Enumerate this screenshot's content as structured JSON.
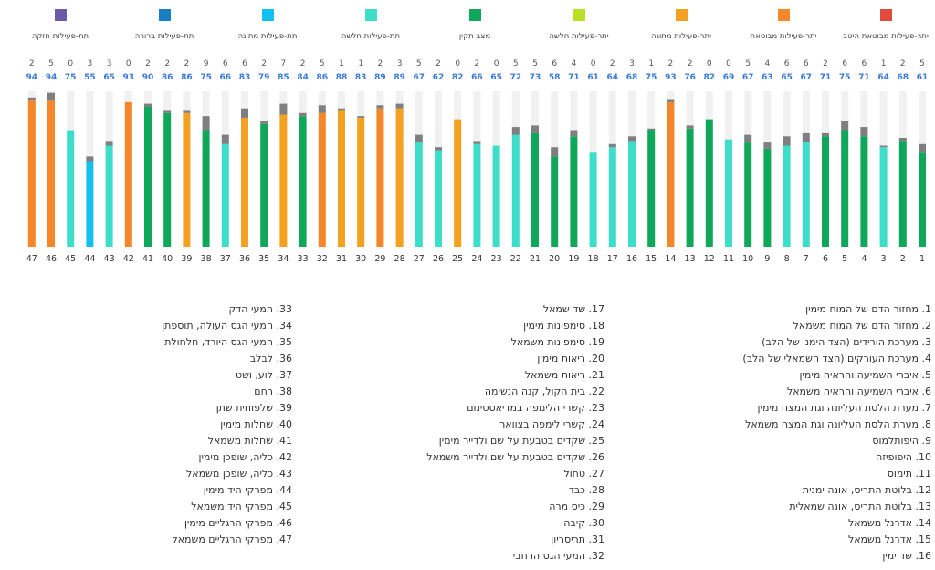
{
  "legend": [
    {
      "label": "יתר-פעילות מבוטאת היטב",
      "color": "#e04b3d",
      "icon": "red-square-icon"
    },
    {
      "label": "יתר-פעילות מבוטאת",
      "color": "#f5862a",
      "icon": "orange-square-icon"
    },
    {
      "label": "יתר-פעילות מתונה",
      "color": "#f4a020",
      "icon": "amber-square-icon"
    },
    {
      "label": "יתר-פעילות חלשה",
      "color": "#b9e022",
      "icon": "lime-square-icon"
    },
    {
      "label": "מצב תקין",
      "color": "#0fa85a",
      "icon": "green-square-icon"
    },
    {
      "label": "תת-פעילות חלשה",
      "color": "#3ddec9",
      "icon": "turquoise-square-icon"
    },
    {
      "label": "תת-פעילות מתונה",
      "color": "#13c0f0",
      "icon": "light-blue-square-icon"
    },
    {
      "label": "תת-פעילות ברורה",
      "color": "#1a7fc0",
      "icon": "blue-square-icon"
    },
    {
      "label": "תת-פעילות חזקה",
      "color": "#6a5aa8",
      "icon": "purple-square-icon"
    }
  ],
  "colors": {
    "grey_cap": "#7f7f7f",
    "track": "#f1f1f1",
    "value_blue": "#3a7bd5",
    "top_grey": "#555555"
  },
  "chart_data": {
    "type": "bar",
    "ylim": [
      0,
      100
    ],
    "categories": [
      "1",
      "2",
      "3",
      "4",
      "5",
      "6",
      "7",
      "8",
      "9",
      "10",
      "11",
      "12",
      "13",
      "14",
      "15",
      "16",
      "17",
      "18",
      "19",
      "20",
      "21",
      "22",
      "23",
      "24",
      "25",
      "26",
      "27",
      "28",
      "29",
      "30",
      "31",
      "32",
      "33",
      "34",
      "35",
      "36",
      "37",
      "38",
      "39",
      "40",
      "41",
      "42",
      "43",
      "44",
      "45",
      "46",
      "47"
    ],
    "values": [
      61,
      68,
      64,
      71,
      75,
      71,
      67,
      65,
      63,
      67,
      69,
      82,
      76,
      93,
      75,
      68,
      64,
      61,
      71,
      58,
      73,
      72,
      65,
      66,
      82,
      62,
      67,
      89,
      89,
      83,
      88,
      86,
      84,
      85,
      79,
      83,
      66,
      75,
      86,
      86,
      90,
      93,
      65,
      55,
      75,
      94,
      94
    ],
    "top_values": [
      5,
      2,
      1,
      6,
      6,
      2,
      6,
      6,
      4,
      5,
      0,
      0,
      2,
      2,
      1,
      3,
      2,
      0,
      4,
      6,
      5,
      5,
      0,
      2,
      0,
      2,
      5,
      3,
      2,
      1,
      1,
      5,
      2,
      7,
      2,
      6,
      6,
      9,
      2,
      2,
      2,
      0,
      3,
      3,
      0,
      5,
      2
    ],
    "colors": [
      "green",
      "green",
      "turquoise",
      "green",
      "green",
      "green",
      "turquoise",
      "turquoise",
      "green",
      "green",
      "turquoise",
      "green",
      "green",
      "orange",
      "green",
      "turquoise",
      "turquoise",
      "turquoise",
      "green",
      "green",
      "green",
      "turquoise",
      "turquoise",
      "turquoise",
      "amber",
      "turquoise",
      "turquoise",
      "amber",
      "orange",
      "amber",
      "amber",
      "orange",
      "green",
      "amber",
      "green",
      "amber",
      "turquoise",
      "green",
      "amber",
      "green",
      "green",
      "orange",
      "turquoise",
      "light-blue",
      "turquoise",
      "orange",
      "orange"
    ]
  },
  "lists": [
    {
      "items": [
        "1. מחזור הדם של המוח מימין",
        "2. מחזור הדם של המוח משמאל",
        "3. מערכת הורידים (הצד הימני של הלב)",
        "4. מערכת העורקים (הצד השמאלי של הלב)",
        "5. איברי השמיעה והראיה מימין",
        "6. איברי השמיעה והראיה משמאל",
        "7. מערת הלסת העליונה וגת המצח מימין",
        "8. מערת הלסת העליונה וגת המצח משמאל",
        "9. היפותלמוס",
        "10. היפופיזה",
        "11. תימוס",
        "12. בלוטת התריס, אונה ימנית",
        "13. בלוטת התריס, אונה שמאלית",
        "14. אדרנל משמאל",
        "15. אדרנל משמאל",
        "16. שד ימין"
      ]
    },
    {
      "items": [
        "17. שד שמאל",
        "18. סימפונות מימין",
        "19. סימפונות משמאל",
        "20. ריאות מימין",
        "21. ריאות משמאל",
        "22. בית הקול, קנה הנשימה",
        "23. קשרי הלימפה במדיאסטינום",
        "24. קשרי לימפה בצוואר",
        "25. שקדים בטבעת על שם ולדייר מימין",
        "26. שקדים בטבעת על שם ולדייר משמאל",
        "27. טחול",
        "28. כבד",
        "29. כיס מרה",
        "30. קיבה",
        "31. תריסריון",
        "32. המעי הגס הרחבי"
      ]
    },
    {
      "items": [
        "33. המעי הדק",
        "34. המעי הגס העולה, תוספתן",
        "35. המעי הגס היורד, חלחולת",
        "36. לבלב",
        "37. לוע, ושט",
        "38. רחם",
        "39. שלפוחית שתן",
        "40. שחלות מימין",
        "41. שחלות משמאל",
        "42. כליה, שופכן מימין",
        "43. כליה, שופכן משמאל",
        "44. מפרקי היד מימין",
        "45. מפרקי היד משמאל",
        "46. מפרקי הרגליים מימין",
        "47. מפרקי הרגליים משמאל"
      ]
    }
  ]
}
